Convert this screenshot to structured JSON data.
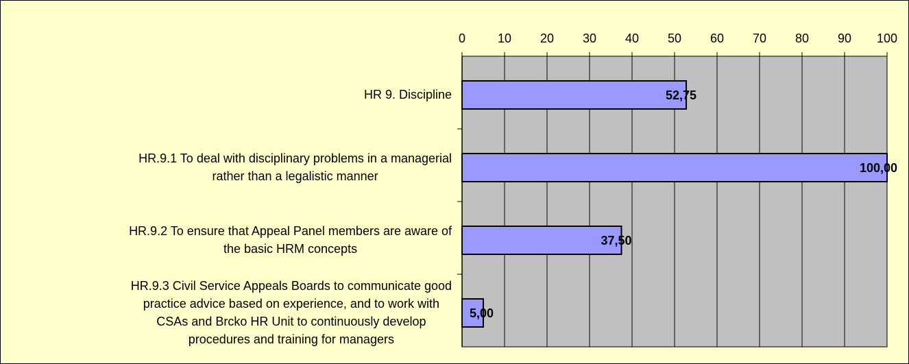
{
  "chart_data": {
    "type": "hbar",
    "categories": [
      "HR 9. Discipline",
      "HR.9.1 To deal with disciplinary problems in a managerial\nrather than a legalistic manner",
      "HR.9.2 To ensure that Appeal Panel members are aware of\nthe basic HRM concepts",
      "HR.9.3 Civil Service Appeals Boards to communicate good\npractice advice based on experience, and to work with\nCSAs and Brcko HR Unit to continuously develop\nprocedures and training for managers"
    ],
    "values": [
      52.75,
      100,
      37.5,
      5
    ],
    "value_labels": [
      "52,75",
      "100,00",
      "37,50",
      "5,00"
    ],
    "color": "#9999ff",
    "xlim": [
      0,
      100
    ],
    "xticks": [
      0,
      10,
      20,
      30,
      40,
      50,
      60,
      70,
      80,
      90,
      100
    ],
    "grid": true
  }
}
